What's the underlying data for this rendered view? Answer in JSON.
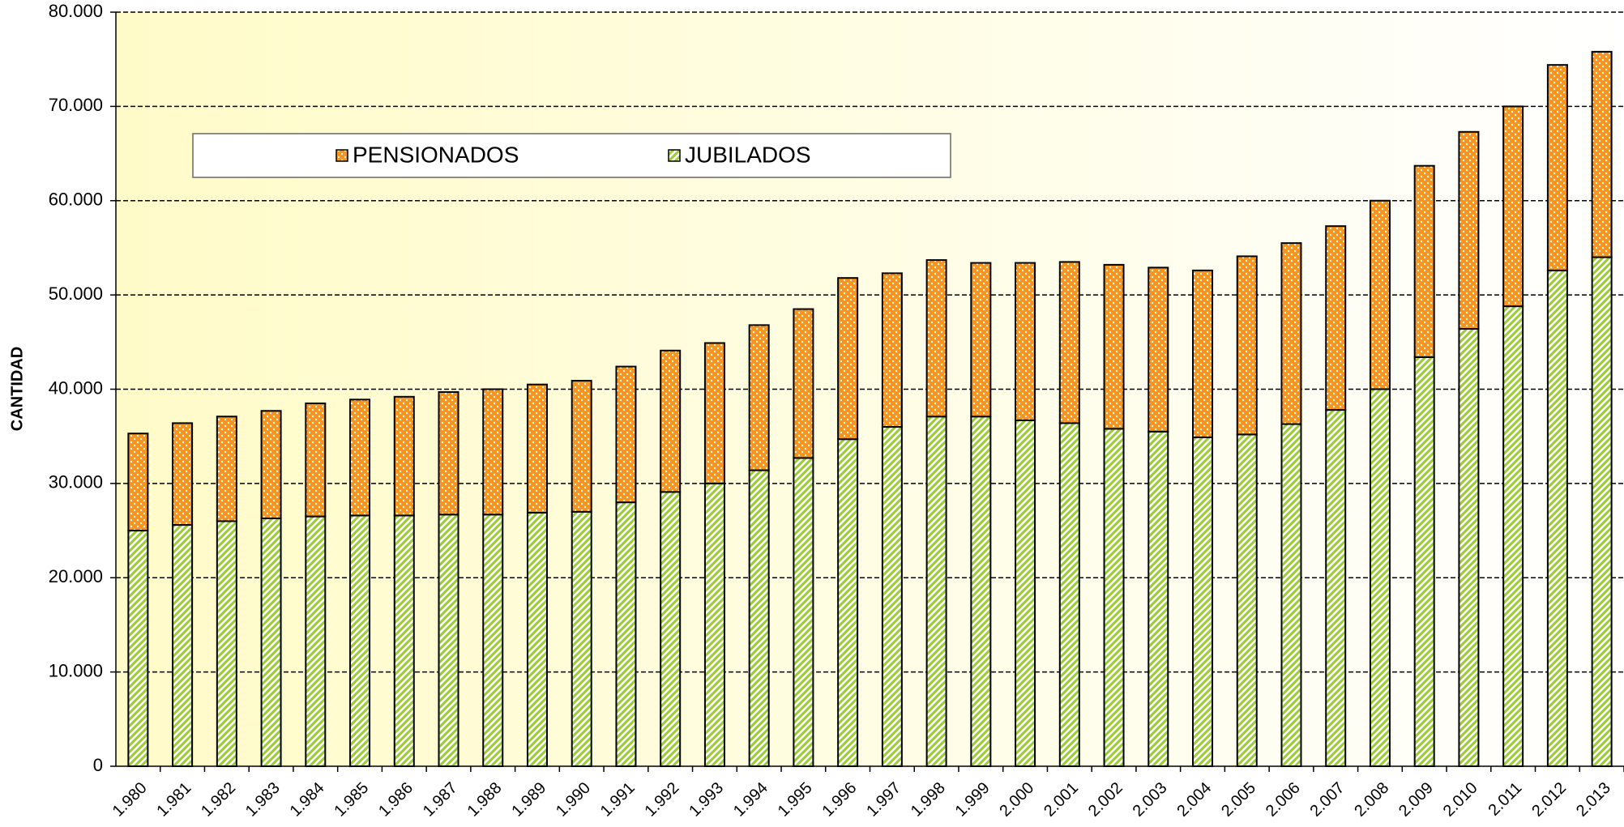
{
  "chart_data": {
    "type": "stacked_bar",
    "y_label": "CANTIDAD",
    "categories": [
      "1.980",
      "1.981",
      "1.982",
      "1.983",
      "1.984",
      "1.985",
      "1.986",
      "1.987",
      "1.988",
      "1.989",
      "1.990",
      "1.991",
      "1.992",
      "1.993",
      "1.994",
      "1.995",
      "1.996",
      "1.997",
      "1.998",
      "1.999",
      "2.000",
      "2.001",
      "2.002",
      "2.003",
      "2.004",
      "2.005",
      "2.006",
      "2.007",
      "2.008",
      "2.009",
      "2.010",
      "2.011",
      "2.012",
      "2.013"
    ],
    "series": [
      {
        "name": "JUBILADOS",
        "color": "#9acd32",
        "pattern": "hatch",
        "values": [
          25000,
          25600,
          26000,
          26300,
          26500,
          26600,
          26600,
          26700,
          26700,
          26900,
          27000,
          28000,
          29100,
          30000,
          31400,
          32700,
          34700,
          36000,
          37100,
          37100,
          36700,
          36400,
          35800,
          35500,
          34900,
          35200,
          36300,
          37800,
          40000,
          43400,
          46400,
          48800,
          52600,
          54000
        ]
      },
      {
        "name": "PENSIONADOS",
        "color": "#f7941d",
        "pattern": "dots",
        "values": [
          10300,
          10800,
          11100,
          11400,
          12000,
          12300,
          12600,
          13000,
          13300,
          13600,
          13900,
          14400,
          15000,
          14900,
          15400,
          15800,
          17100,
          16300,
          16600,
          16300,
          16700,
          17100,
          17400,
          17400,
          17700,
          18900,
          19200,
          19500,
          20000,
          20300,
          20900,
          21200,
          21800,
          21800
        ]
      }
    ],
    "ylim": [
      0,
      80000
    ],
    "yticks": [
      0,
      {
        "value": 10000,
        "label": "10.000"
      },
      {
        "value": 20000,
        "label": "20.000"
      },
      {
        "value": 30000,
        "label": "30.000"
      },
      {
        "value": 40000,
        "label": "40.000"
      },
      {
        "value": 50000,
        "label": "50.000"
      },
      {
        "value": 60000,
        "label": "60.000"
      },
      {
        "value": 70000,
        "label": "70.000"
      },
      {
        "value": 80000,
        "label": "80.000"
      }
    ],
    "grid": true,
    "grid_style": "dashed"
  }
}
